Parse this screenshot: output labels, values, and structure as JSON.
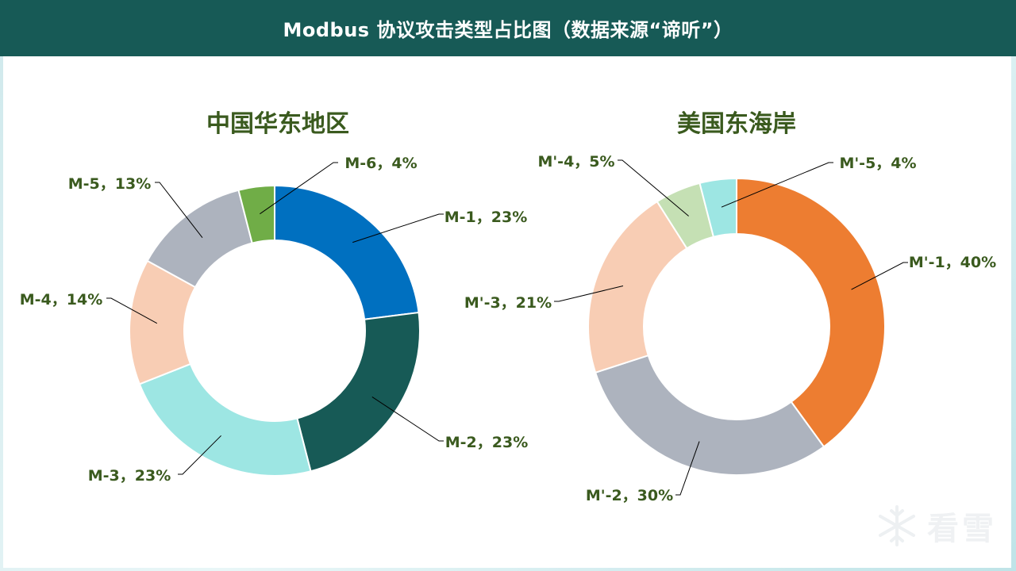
{
  "page": {
    "title": "Modbus 协议攻击类型占比图（数据来源“谛听”）",
    "watermark_text": "看雪"
  },
  "icons": {
    "watermark": "snowflake-icon"
  },
  "chart_data": [
    {
      "type": "pie",
      "donut": true,
      "title": "中国华东地区",
      "slices": [
        {
          "label": "M-1，23%",
          "value": 23,
          "color": "#0070c0"
        },
        {
          "label": "M-2，23%",
          "value": 23,
          "color": "#175a56"
        },
        {
          "label": "M-3，23%",
          "value": 23,
          "color": "#9de6e3"
        },
        {
          "label": "M-4，14%",
          "value": 14,
          "color": "#f8cdb4"
        },
        {
          "label": "M-5，13%",
          "value": 13,
          "color": "#adb3be"
        },
        {
          "label": "M-6，4%",
          "value": 4,
          "color": "#70ad47"
        }
      ]
    },
    {
      "type": "pie",
      "donut": true,
      "title": "美国东海岸",
      "slices": [
        {
          "label": "M'-1，40%",
          "value": 40,
          "color": "#ed7d31"
        },
        {
          "label": "M'-2，30%",
          "value": 30,
          "color": "#adb3be"
        },
        {
          "label": "M'-3，21%",
          "value": 21,
          "color": "#f8cdb4"
        },
        {
          "label": "M'-4，5%",
          "value": 5,
          "color": "#c5e0b4"
        },
        {
          "label": "M'-5，4%",
          "value": 4,
          "color": "#9de6e3"
        }
      ]
    }
  ]
}
